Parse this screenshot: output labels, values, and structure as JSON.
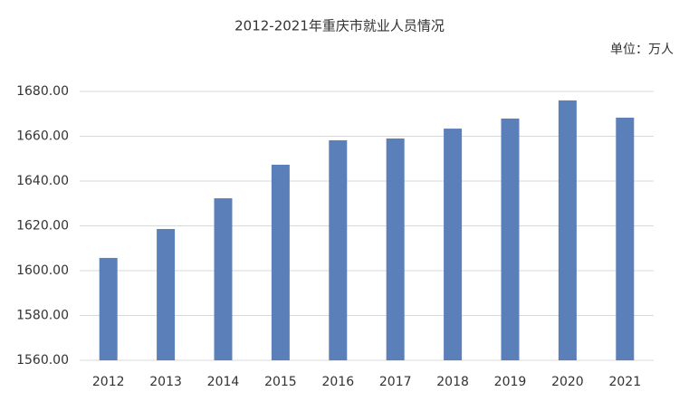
{
  "chart_data": {
    "type": "bar",
    "title": "2012-2021年重庆市就业人员情况",
    "unit_label": "单位：万人",
    "categories": [
      "2012",
      "2013",
      "2014",
      "2015",
      "2016",
      "2017",
      "2018",
      "2019",
      "2020",
      "2021"
    ],
    "values": [
      1605.7,
      1618.6,
      1632.3,
      1647.3,
      1658.2,
      1659,
      1663.4,
      1667.9,
      1676,
      1668.3
    ],
    "color": "#5b7fb9",
    "ylim": [
      1560,
      1680
    ],
    "yticks": [
      {
        "value": 1560,
        "label": "1560.00"
      },
      {
        "value": 1580,
        "label": "1580.00"
      },
      {
        "value": 1600,
        "label": "1600.00"
      },
      {
        "value": 1620,
        "label": "1620.00"
      },
      {
        "value": 1640,
        "label": "1640.00"
      },
      {
        "value": 1660,
        "label": "1660.00"
      },
      {
        "value": 1680,
        "label": "1680.00"
      }
    ],
    "grid": true
  }
}
